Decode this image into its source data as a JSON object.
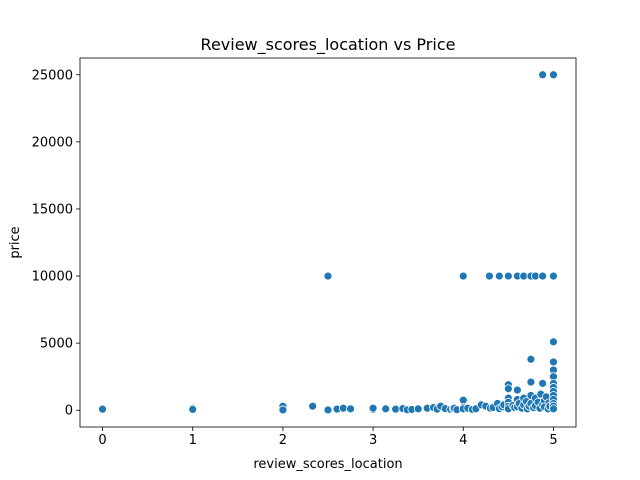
{
  "chart_data": {
    "type": "scatter",
    "title": "Review_scores_location vs Price",
    "xlabel": "review_scores_location",
    "ylabel": "price",
    "xlim": [
      -0.25,
      5.25
    ],
    "ylim": [
      -1250,
      26250
    ],
    "xticks": [
      "0",
      "1",
      "2",
      "3",
      "4",
      "5"
    ],
    "yticks": [
      "0",
      "5000",
      "10000",
      "15000",
      "20000",
      "25000"
    ],
    "grid": false,
    "legend": "none",
    "color": "#1f77b4",
    "points": [
      [
        0,
        80
      ],
      [
        1,
        150
      ],
      [
        1,
        60
      ],
      [
        2,
        300
      ],
      [
        2,
        20
      ],
      [
        2.33,
        300
      ],
      [
        2.5,
        10000
      ],
      [
        2.5,
        20
      ],
      [
        2.6,
        80
      ],
      [
        2.67,
        150
      ],
      [
        2.75,
        100
      ],
      [
        3,
        50
      ],
      [
        3,
        150
      ],
      [
        3.14,
        100
      ],
      [
        3.25,
        80
      ],
      [
        3.33,
        120
      ],
      [
        3.38,
        30
      ],
      [
        3.43,
        60
      ],
      [
        3.5,
        100
      ],
      [
        3.6,
        150
      ],
      [
        3.67,
        200
      ],
      [
        3.71,
        80
      ],
      [
        3.75,
        300
      ],
      [
        3.8,
        120
      ],
      [
        3.86,
        60
      ],
      [
        3.89,
        90
      ],
      [
        3.9,
        150
      ],
      [
        3.93,
        40
      ],
      [
        4,
        750
      ],
      [
        4,
        10000
      ],
      [
        4,
        200
      ],
      [
        4,
        100
      ],
      [
        4.05,
        150
      ],
      [
        4.1,
        60
      ],
      [
        4.14,
        100
      ],
      [
        4.2,
        400
      ],
      [
        4.25,
        300
      ],
      [
        4.29,
        10000
      ],
      [
        4.3,
        150
      ],
      [
        4.33,
        200
      ],
      [
        4.38,
        500
      ],
      [
        4.4,
        10000
      ],
      [
        4.4,
        120
      ],
      [
        4.43,
        250
      ],
      [
        4.45,
        400
      ],
      [
        4.5,
        10000
      ],
      [
        4.5,
        1900
      ],
      [
        4.5,
        1600
      ],
      [
        4.5,
        900
      ],
      [
        4.5,
        600
      ],
      [
        4.5,
        300
      ],
      [
        4.5,
        100
      ],
      [
        4.55,
        350
      ],
      [
        4.57,
        200
      ],
      [
        4.6,
        10000
      ],
      [
        4.6,
        1500
      ],
      [
        4.6,
        800
      ],
      [
        4.6,
        250
      ],
      [
        4.62,
        500
      ],
      [
        4.65,
        150
      ],
      [
        4.67,
        10000
      ],
      [
        4.67,
        900
      ],
      [
        4.67,
        400
      ],
      [
        4.7,
        650
      ],
      [
        4.71,
        100
      ],
      [
        4.73,
        300
      ],
      [
        4.75,
        10000
      ],
      [
        4.75,
        3800
      ],
      [
        4.75,
        2100
      ],
      [
        4.75,
        1100
      ],
      [
        4.75,
        500
      ],
      [
        4.78,
        200
      ],
      [
        4.8,
        10000
      ],
      [
        4.8,
        900
      ],
      [
        4.8,
        350
      ],
      [
        4.83,
        600
      ],
      [
        4.85,
        150
      ],
      [
        4.86,
        1200
      ],
      [
        4.88,
        25000
      ],
      [
        4.88,
        10000
      ],
      [
        4.88,
        2000
      ],
      [
        4.88,
        400
      ],
      [
        4.9,
        700
      ],
      [
        4.9,
        250
      ],
      [
        4.92,
        1000
      ],
      [
        4.94,
        100
      ],
      [
        4.95,
        550
      ],
      [
        4.96,
        300
      ],
      [
        5,
        25000
      ],
      [
        5,
        10000
      ],
      [
        5,
        5100
      ],
      [
        5,
        3600
      ],
      [
        5,
        3000
      ],
      [
        5,
        2500
      ],
      [
        5,
        2000
      ],
      [
        5,
        1700
      ],
      [
        5,
        1400
      ],
      [
        5,
        1100
      ],
      [
        5,
        800
      ],
      [
        5,
        500
      ],
      [
        5,
        300
      ],
      [
        5,
        100
      ]
    ]
  }
}
